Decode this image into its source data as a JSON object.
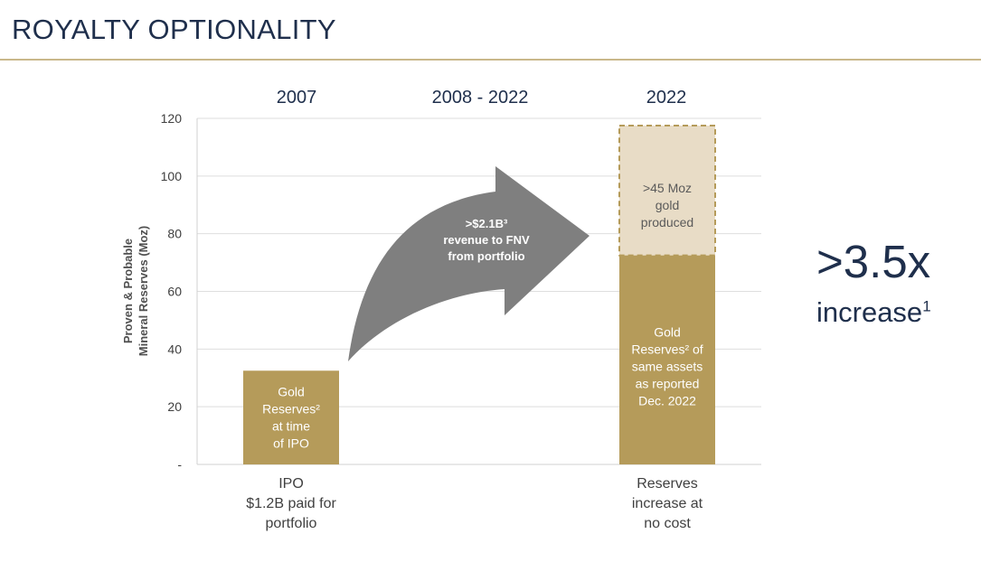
{
  "slide": {
    "title": "ROYALTY OPTIONALITY"
  },
  "chart_data": {
    "type": "bar",
    "ylabel": [
      "Proven & Probable",
      "Mineral Reserves (Moz)"
    ],
    "ylim": [
      0,
      120
    ],
    "yticks": [
      {
        "value": 0,
        "label": "-"
      },
      {
        "value": 20,
        "label": "20"
      },
      {
        "value": 40,
        "label": "40"
      },
      {
        "value": 60,
        "label": "60"
      },
      {
        "value": 80,
        "label": "80"
      },
      {
        "value": 100,
        "label": "100"
      },
      {
        "value": 120,
        "label": "120"
      }
    ],
    "grid": true,
    "period_headers": [
      "2007",
      "2008 - 2022",
      "2022"
    ],
    "bars": [
      {
        "category": "2007",
        "segments": [
          {
            "name": "Gold Reserves at time of IPO",
            "base": 0,
            "value": 32.5,
            "color": "#b59b5a",
            "label": [
              "Gold",
              "Reserves²",
              "at time",
              "of IPO"
            ]
          }
        ],
        "footer": [
          "IPO",
          "$1.2B paid for",
          "portfolio"
        ]
      },
      {
        "category": "2022",
        "segments": [
          {
            "name": "Gold Reserves of same assets as reported Dec. 2022",
            "base": 0,
            "value": 72.5,
            "color": "#b59b5a",
            "label": [
              "Gold",
              "Reserves² of",
              "same assets",
              "as reported",
              "Dec. 2022"
            ]
          },
          {
            "name": ">45 Moz gold produced",
            "base": 72.5,
            "value": 45,
            "color": "#e8dcc6",
            "dashed": true,
            "label": [
              ">45 Moz",
              "gold",
              "produced"
            ]
          }
        ],
        "footer": [
          "Reserves",
          "increase at",
          "no cost"
        ]
      }
    ],
    "annotation": {
      "text": [
        ">$2.1B³",
        "revenue to FNV",
        "from portfolio"
      ],
      "color": "#7f7f7f"
    }
  },
  "callout": {
    "big": ">3.5x",
    "word": "increase",
    "sup": "1"
  }
}
